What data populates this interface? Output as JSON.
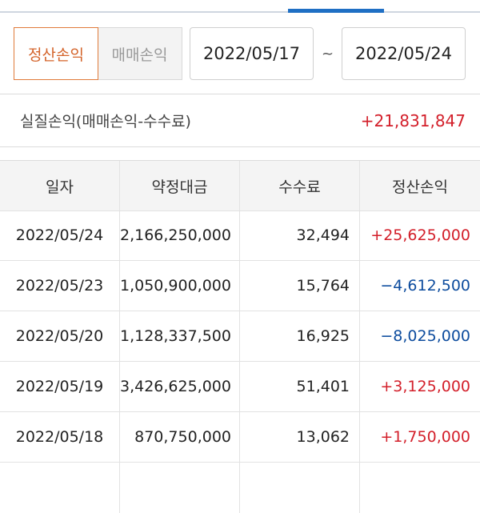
{
  "tabs": [
    "정산손익",
    "매매손익"
  ],
  "date_range": {
    "start": "2022/05/17",
    "separator": "~",
    "end": "2022/05/24"
  },
  "summary": {
    "label": "실질손익(매매손익-수수료)",
    "value": "+21,831,847"
  },
  "table": {
    "columns": [
      "일자",
      "약정대금",
      "수수료",
      "정산손익"
    ],
    "rows": [
      [
        "2022/05/24",
        "2,166,250,000",
        "32,494",
        "+25,625,000"
      ],
      [
        "2022/05/23",
        "1,050,900,000",
        "15,764",
        "−4,612,500"
      ],
      [
        "2022/05/20",
        "1,128,337,500",
        "16,925",
        "−8,025,000"
      ],
      [
        "2022/05/19",
        "3,426,625,000",
        "51,401",
        "+3,125,000"
      ],
      [
        "2022/05/18",
        "870,750,000",
        "13,062",
        "+1,750,000"
      ]
    ]
  }
}
